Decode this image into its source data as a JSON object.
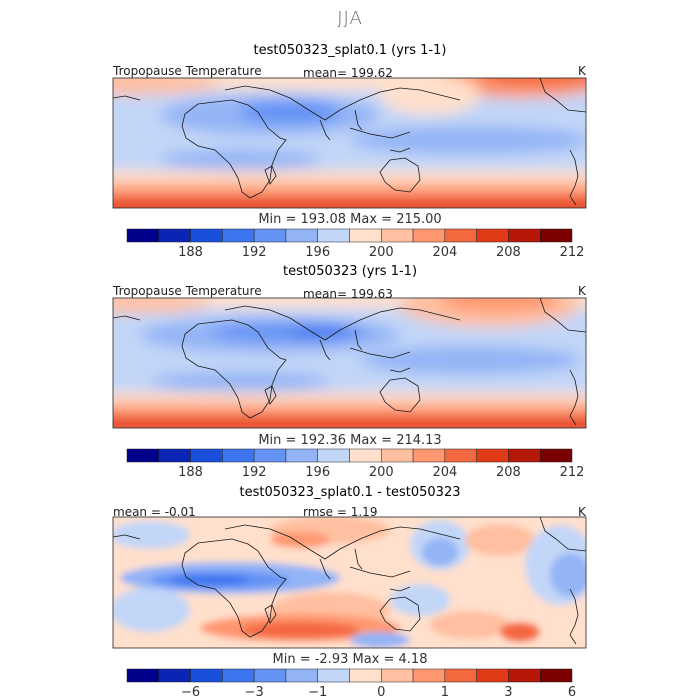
{
  "figure": {
    "season": "JJA"
  },
  "panels": [
    {
      "title": "test050323_splat0.1 (yrs 1-1)",
      "variable": "Tropopause Temperature",
      "stat": "mean= 199.62",
      "units": "K",
      "minmax": "Min = 193.08 Max = 215.00",
      "colorbar_ticks": [
        "188",
        "192",
        "196",
        "200",
        "204",
        "208",
        "212"
      ]
    },
    {
      "title": "test050323 (yrs 1-1)",
      "variable": "Tropopause Temperature",
      "stat": "mean= 199.63",
      "units": "K",
      "minmax": "Min = 192.36 Max = 214.13",
      "colorbar_ticks": [
        "188",
        "192",
        "196",
        "200",
        "204",
        "208",
        "212"
      ]
    },
    {
      "title": "test050323_splat0.1 - test050323",
      "stat_left": "mean = -0.01",
      "stat_mid": "rmse = 1.19",
      "units": "K",
      "minmax": "Min = -2.93 Max = 4.18",
      "colorbar_ticks": [
        "−6",
        "−3",
        "−1",
        "0",
        "1",
        "3",
        "6"
      ]
    }
  ],
  "colors": {
    "abs_palette": [
      "#00008b",
      "#0a24b4",
      "#1a4fdc",
      "#3d74ef",
      "#6593f5",
      "#93b4f6",
      "#c2d6f8",
      "#ffe0cc",
      "#ffbfa0",
      "#ff9870",
      "#f4683f",
      "#e03b16",
      "#b51806",
      "#7a0000"
    ],
    "diff_palette": [
      "#00008b",
      "#0a24b4",
      "#1a4fdc",
      "#3d74ef",
      "#6593f5",
      "#93b4f6",
      "#c2d6f8",
      "#ffe0cc",
      "#ffbfa0",
      "#ff9870",
      "#f4683f",
      "#e03b16",
      "#b51806",
      "#7a0000"
    ]
  },
  "chart_data": [
    {
      "type": "heatmap",
      "title": "test050323_splat0.1 (yrs 1-1)",
      "variable": "Tropopause Temperature",
      "units": "K",
      "mean": 199.62,
      "min": 193.08,
      "max": 215.0,
      "contour_levels": [
        186,
        188,
        190,
        192,
        194,
        196,
        198,
        200,
        202,
        204,
        206,
        208,
        210,
        212,
        214
      ],
      "colorbar_ticks": [
        188,
        192,
        196,
        200,
        204,
        208,
        212
      ]
    },
    {
      "type": "heatmap",
      "title": "test050323 (yrs 1-1)",
      "variable": "Tropopause Temperature",
      "units": "K",
      "mean": 199.63,
      "min": 192.36,
      "max": 214.13,
      "contour_levels": [
        186,
        188,
        190,
        192,
        194,
        196,
        198,
        200,
        202,
        204,
        206,
        208,
        210,
        212,
        214
      ],
      "colorbar_ticks": [
        188,
        192,
        196,
        200,
        204,
        208,
        212
      ]
    },
    {
      "type": "heatmap",
      "title": "test050323_splat0.1 - test050323",
      "units": "K",
      "mean": -0.01,
      "rmse": 1.19,
      "min": -2.93,
      "max": 4.18,
      "contour_levels": [
        -8,
        -6,
        -4,
        -3,
        -2,
        -1,
        -0.5,
        0,
        0.5,
        1,
        2,
        3,
        4,
        6,
        8
      ],
      "colorbar_ticks": [
        -6,
        -3,
        -1,
        0,
        1,
        3,
        6
      ]
    }
  ]
}
